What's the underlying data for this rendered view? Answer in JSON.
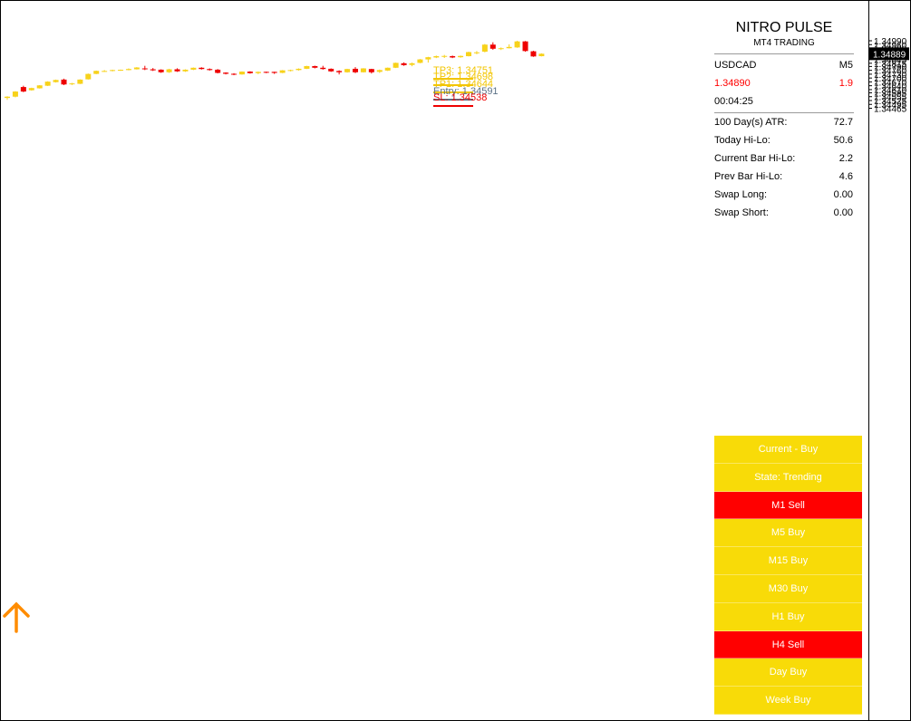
{
  "colors": {
    "bull": "#f7d21b",
    "bear": "#ee0000",
    "tp": "#f2c500",
    "entry": "#5b7186",
    "sl": "#ee0000",
    "signal_buy": "#f8db08",
    "signal_sell": "#ff0000",
    "arrow": "#ff8c00",
    "current_price_bg": "#000000"
  },
  "icons": {
    "buy_arrow": "arrow-up-icon"
  },
  "price_axis": {
    "labels": [
      "1.34990",
      "1.34960",
      "1.34930",
      "1.34905",
      "1.34875",
      "1.34845",
      "1.34815",
      "1.34790",
      "1.34760",
      "1.34730",
      "1.34700",
      "1.34670",
      "1.34640",
      "1.34610",
      "1.34585",
      "1.34555",
      "1.34525",
      "1.34495",
      "1.34465"
    ],
    "current_price": "1.34889"
  },
  "levels": [
    {
      "key": "tp3",
      "text": "TP3: 1.34751",
      "value": 1.34751
    },
    {
      "key": "tp2",
      "text": "TP2: 1.34698",
      "value": 1.34698
    },
    {
      "key": "tp1",
      "text": "TP1: 1.34644",
      "value": 1.34644
    },
    {
      "key": "entry",
      "text": "Entry: 1.34591",
      "value": 1.34591
    },
    {
      "key": "sl",
      "text": "SL: 1.34538",
      "value": 1.34538
    }
  ],
  "info": {
    "title": "NITRO PULSE",
    "subtitle": "MT4 TRADING",
    "symbol": "USDCAD",
    "timeframe": "M5",
    "price": "1.34890",
    "spread": "1.9",
    "timer": "00:04:25",
    "stats": [
      {
        "label": "100 Day(s) ATR:",
        "value": "72.7"
      },
      {
        "label": "Today Hi-Lo:",
        "value": "50.6"
      },
      {
        "label": "Current Bar Hi-Lo:",
        "value": "2.2"
      },
      {
        "label": "Prev Bar Hi-Lo:",
        "value": "4.6"
      },
      {
        "label": "Swap Long:",
        "value": "0.00"
      },
      {
        "label": "Swap Short:",
        "value": "0.00"
      }
    ]
  },
  "signals": [
    {
      "text": "Current - Buy",
      "type": "buy"
    },
    {
      "text": "State: Trending",
      "type": "buy"
    },
    {
      "text": "M1 Sell",
      "type": "sell"
    },
    {
      "text": "M5 Buy",
      "type": "buy"
    },
    {
      "text": "M15 Buy",
      "type": "buy"
    },
    {
      "text": "M30 Buy",
      "type": "buy"
    },
    {
      "text": "H1 Buy",
      "type": "buy"
    },
    {
      "text": "H4 Sell",
      "type": "sell"
    },
    {
      "text": "Day Buy",
      "type": "buy"
    },
    {
      "text": "Week Buy",
      "type": "buy"
    }
  ],
  "chart_data": {
    "type": "candlestick",
    "symbol": "USDCAD",
    "timeframe": "M5",
    "ylim": [
      1.3446,
      1.35005
    ],
    "candles": [
      {
        "o": 1.34545,
        "h": 1.34558,
        "l": 1.3453,
        "c": 1.34555
      },
      {
        "o": 1.34555,
        "h": 1.34598,
        "l": 1.3455,
        "c": 1.34595
      },
      {
        "o": 1.3463,
        "h": 1.3464,
        "l": 1.3459,
        "c": 1.34595
      },
      {
        "o": 1.34605,
        "h": 1.34625,
        "l": 1.34602,
        "c": 1.34622
      },
      {
        "o": 1.3462,
        "h": 1.34645,
        "l": 1.34618,
        "c": 1.34643
      },
      {
        "o": 1.3464,
        "h": 1.34675,
        "l": 1.34638,
        "c": 1.34672
      },
      {
        "o": 1.34668,
        "h": 1.34688,
        "l": 1.34665,
        "c": 1.34685
      },
      {
        "o": 1.34688,
        "h": 1.34695,
        "l": 1.34645,
        "c": 1.3465
      },
      {
        "o": 1.34652,
        "h": 1.34662,
        "l": 1.34646,
        "c": 1.34658
      },
      {
        "o": 1.34655,
        "h": 1.3469,
        "l": 1.34653,
        "c": 1.34688
      },
      {
        "o": 1.3469,
        "h": 1.34735,
        "l": 1.34688,
        "c": 1.34732
      },
      {
        "o": 1.34732,
        "h": 1.34758,
        "l": 1.3473,
        "c": 1.34756
      },
      {
        "o": 1.3475,
        "h": 1.34762,
        "l": 1.34748,
        "c": 1.34755
      },
      {
        "o": 1.34755,
        "h": 1.34765,
        "l": 1.34752,
        "c": 1.34762
      },
      {
        "o": 1.3476,
        "h": 1.34766,
        "l": 1.34756,
        "c": 1.34764
      },
      {
        "o": 1.34762,
        "h": 1.34775,
        "l": 1.3476,
        "c": 1.3477
      },
      {
        "o": 1.34768,
        "h": 1.34785,
        "l": 1.34766,
        "c": 1.34782
      },
      {
        "o": 1.34775,
        "h": 1.34795,
        "l": 1.34762,
        "c": 1.34768
      },
      {
        "o": 1.34768,
        "h": 1.34778,
        "l": 1.34755,
        "c": 1.3476
      },
      {
        "o": 1.34765,
        "h": 1.34768,
        "l": 1.3474,
        "c": 1.34745
      },
      {
        "o": 1.34745,
        "h": 1.34772,
        "l": 1.3474,
        "c": 1.34768
      },
      {
        "o": 1.34768,
        "h": 1.34776,
        "l": 1.34748,
        "c": 1.34752
      },
      {
        "o": 1.34752,
        "h": 1.34768,
        "l": 1.34748,
        "c": 1.34765
      },
      {
        "o": 1.34765,
        "h": 1.34782,
        "l": 1.34762,
        "c": 1.3478
      },
      {
        "o": 1.3478,
        "h": 1.34784,
        "l": 1.34766,
        "c": 1.3477
      },
      {
        "o": 1.3477,
        "h": 1.34775,
        "l": 1.34758,
        "c": 1.34762
      },
      {
        "o": 1.34765,
        "h": 1.3477,
        "l": 1.34736,
        "c": 1.3474
      },
      {
        "o": 1.34742,
        "h": 1.34745,
        "l": 1.34728,
        "c": 1.34733
      },
      {
        "o": 1.34733,
        "h": 1.34738,
        "l": 1.34722,
        "c": 1.34726
      },
      {
        "o": 1.34728,
        "h": 1.34752,
        "l": 1.34726,
        "c": 1.3475
      },
      {
        "o": 1.3475,
        "h": 1.34753,
        "l": 1.34734,
        "c": 1.34738
      },
      {
        "o": 1.34738,
        "h": 1.34751,
        "l": 1.3473,
        "c": 1.34748
      },
      {
        "o": 1.34748,
        "h": 1.3475,
        "l": 1.34738,
        "c": 1.34746
      },
      {
        "o": 1.34748,
        "h": 1.34749,
        "l": 1.34732,
        "c": 1.3474
      },
      {
        "o": 1.3474,
        "h": 1.34762,
        "l": 1.34738,
        "c": 1.3476
      },
      {
        "o": 1.34755,
        "h": 1.34765,
        "l": 1.34752,
        "c": 1.34762
      },
      {
        "o": 1.34762,
        "h": 1.34775,
        "l": 1.34758,
        "c": 1.34772
      },
      {
        "o": 1.34772,
        "h": 1.34795,
        "l": 1.3477,
        "c": 1.34793
      },
      {
        "o": 1.34793,
        "h": 1.34796,
        "l": 1.34775,
        "c": 1.3478
      },
      {
        "o": 1.3478,
        "h": 1.34795,
        "l": 1.34765,
        "c": 1.3477
      },
      {
        "o": 1.34772,
        "h": 1.34775,
        "l": 1.34748,
        "c": 1.34752
      },
      {
        "o": 1.34755,
        "h": 1.3476,
        "l": 1.34728,
        "c": 1.34745
      },
      {
        "o": 1.34745,
        "h": 1.34772,
        "l": 1.34742,
        "c": 1.3477
      },
      {
        "o": 1.34772,
        "h": 1.34785,
        "l": 1.34738,
        "c": 1.34745
      },
      {
        "o": 1.34745,
        "h": 1.34777,
        "l": 1.34743,
        "c": 1.34775
      },
      {
        "o": 1.3477,
        "h": 1.34772,
        "l": 1.34735,
        "c": 1.34745
      },
      {
        "o": 1.34748,
        "h": 1.34766,
        "l": 1.3474,
        "c": 1.34762
      },
      {
        "o": 1.34758,
        "h": 1.34782,
        "l": 1.34755,
        "c": 1.3478
      },
      {
        "o": 1.3478,
        "h": 1.3482,
        "l": 1.34778,
        "c": 1.34818
      },
      {
        "o": 1.34815,
        "h": 1.34822,
        "l": 1.34795,
        "c": 1.348
      },
      {
        "o": 1.34802,
        "h": 1.3482,
        "l": 1.34792,
        "c": 1.34815
      },
      {
        "o": 1.34818,
        "h": 1.34848,
        "l": 1.34815,
        "c": 1.34845
      },
      {
        "o": 1.34845,
        "h": 1.34865,
        "l": 1.3482,
        "c": 1.34862
      },
      {
        "o": 1.3486,
        "h": 1.34875,
        "l": 1.34855,
        "c": 1.3487
      },
      {
        "o": 1.34868,
        "h": 1.3488,
        "l": 1.34856,
        "c": 1.34872
      },
      {
        "o": 1.3487,
        "h": 1.34875,
        "l": 1.34855,
        "c": 1.3486
      },
      {
        "o": 1.34862,
        "h": 1.34875,
        "l": 1.34858,
        "c": 1.34872
      },
      {
        "o": 1.3487,
        "h": 1.34905,
        "l": 1.34868,
        "c": 1.34902
      },
      {
        "o": 1.34898,
        "h": 1.3491,
        "l": 1.34885,
        "c": 1.349
      },
      {
        "o": 1.34905,
        "h": 1.34965,
        "l": 1.349,
        "c": 1.3496
      },
      {
        "o": 1.3496,
        "h": 1.34978,
        "l": 1.3492,
        "c": 1.34928
      },
      {
        "o": 1.34925,
        "h": 1.34938,
        "l": 1.34918,
        "c": 1.34932
      },
      {
        "o": 1.34932,
        "h": 1.34962,
        "l": 1.3493,
        "c": 1.34942
      },
      {
        "o": 1.34938,
        "h": 1.3499,
        "l": 1.34935,
        "c": 1.34985
      },
      {
        "o": 1.34985,
        "h": 1.34988,
        "l": 1.34905,
        "c": 1.3491
      },
      {
        "o": 1.34908,
        "h": 1.34912,
        "l": 1.34865,
        "c": 1.34868
      },
      {
        "o": 1.3487,
        "h": 1.34892,
        "l": 1.34868,
        "c": 1.34889
      }
    ]
  }
}
